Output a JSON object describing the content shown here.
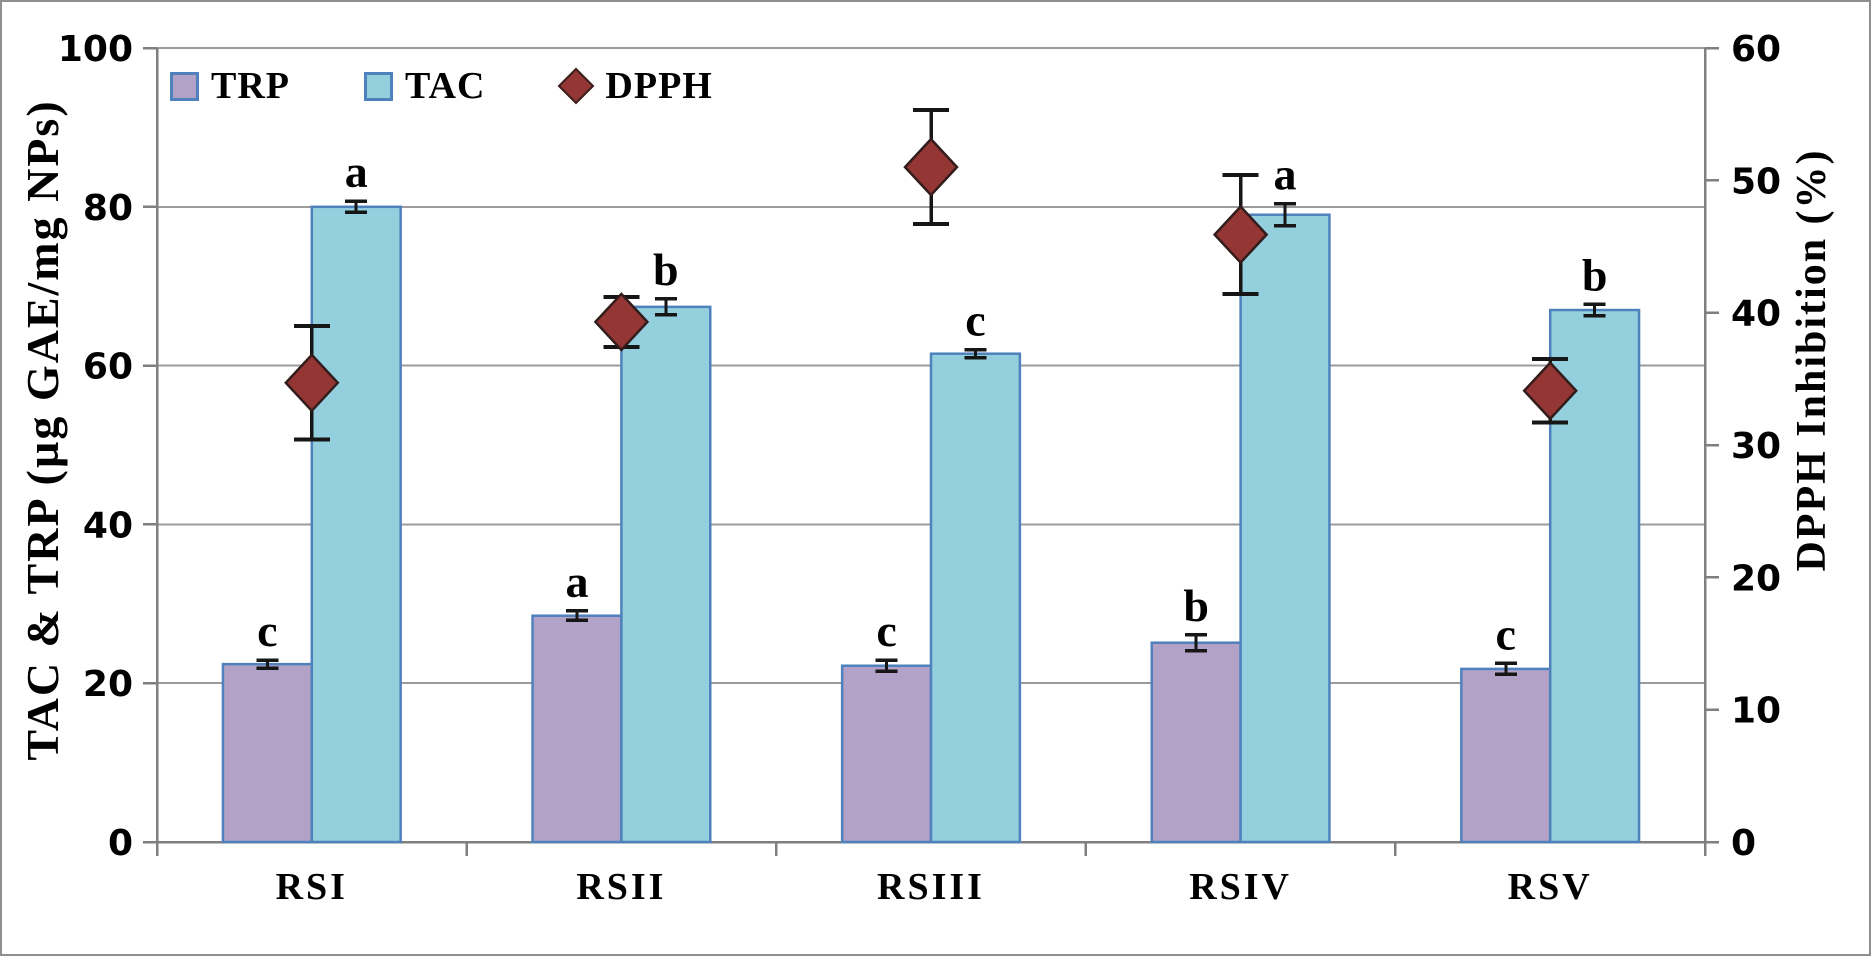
{
  "figure": {
    "background": "#ffffff",
    "border_color": "#8f8f8f"
  },
  "chart_data": {
    "type": "bar",
    "subtype": "grouped bars with diamond scatter overlay on secondary axis",
    "categories": [
      "RSI",
      "RSII",
      "RSIII",
      "RSIV",
      "RSV"
    ],
    "series": [
      {
        "name": "TRP",
        "type": "bar",
        "axis": "left",
        "fill": "#b3a2c7",
        "stroke": "#4f81bd",
        "values": [
          22.4,
          28.5,
          22.2,
          25.1,
          21.8
        ],
        "errors": [
          0.5,
          0.6,
          0.7,
          1.0,
          0.7
        ],
        "letters": [
          "c",
          "a",
          "c",
          "b",
          "c"
        ]
      },
      {
        "name": "TAC",
        "type": "bar",
        "axis": "left",
        "fill": "#93cfdd",
        "stroke": "#4f81bd",
        "values": [
          80.0,
          67.4,
          61.5,
          79.0,
          67.0
        ],
        "errors": [
          0.7,
          1.0,
          0.5,
          1.4,
          0.7
        ],
        "letters": [
          "a",
          "b",
          "c",
          "a",
          "b"
        ]
      },
      {
        "name": "DPPH",
        "type": "scatter-diamond",
        "axis": "right",
        "fill": "#943634",
        "stroke": "#331c1c",
        "values": [
          34.7,
          39.3,
          51.0,
          45.9,
          34.1
        ],
        "errors": [
          4.3,
          1.9,
          4.3,
          4.5,
          2.4
        ],
        "letters": [
          "",
          "",
          "",
          "",
          ""
        ]
      }
    ],
    "left_axis": {
      "label": "TAC & TRP (µg GAE/mg NPs)",
      "min": 0,
      "max": 100,
      "ticks": [
        0,
        20,
        40,
        60,
        80,
        100
      ]
    },
    "right_axis": {
      "label": "DPPH Inhibition (%)",
      "min": 0,
      "max": 60,
      "ticks": [
        0,
        10,
        20,
        30,
        40,
        50,
        60
      ]
    },
    "grid": "horizontal gridlines every 20 left-axis units",
    "legend_position": "top-left inside plot",
    "colors": {
      "gridline": "#9b9b9b",
      "axis_line": "#7f7f7f",
      "error_bar": "#161616",
      "text": "#000000"
    }
  }
}
